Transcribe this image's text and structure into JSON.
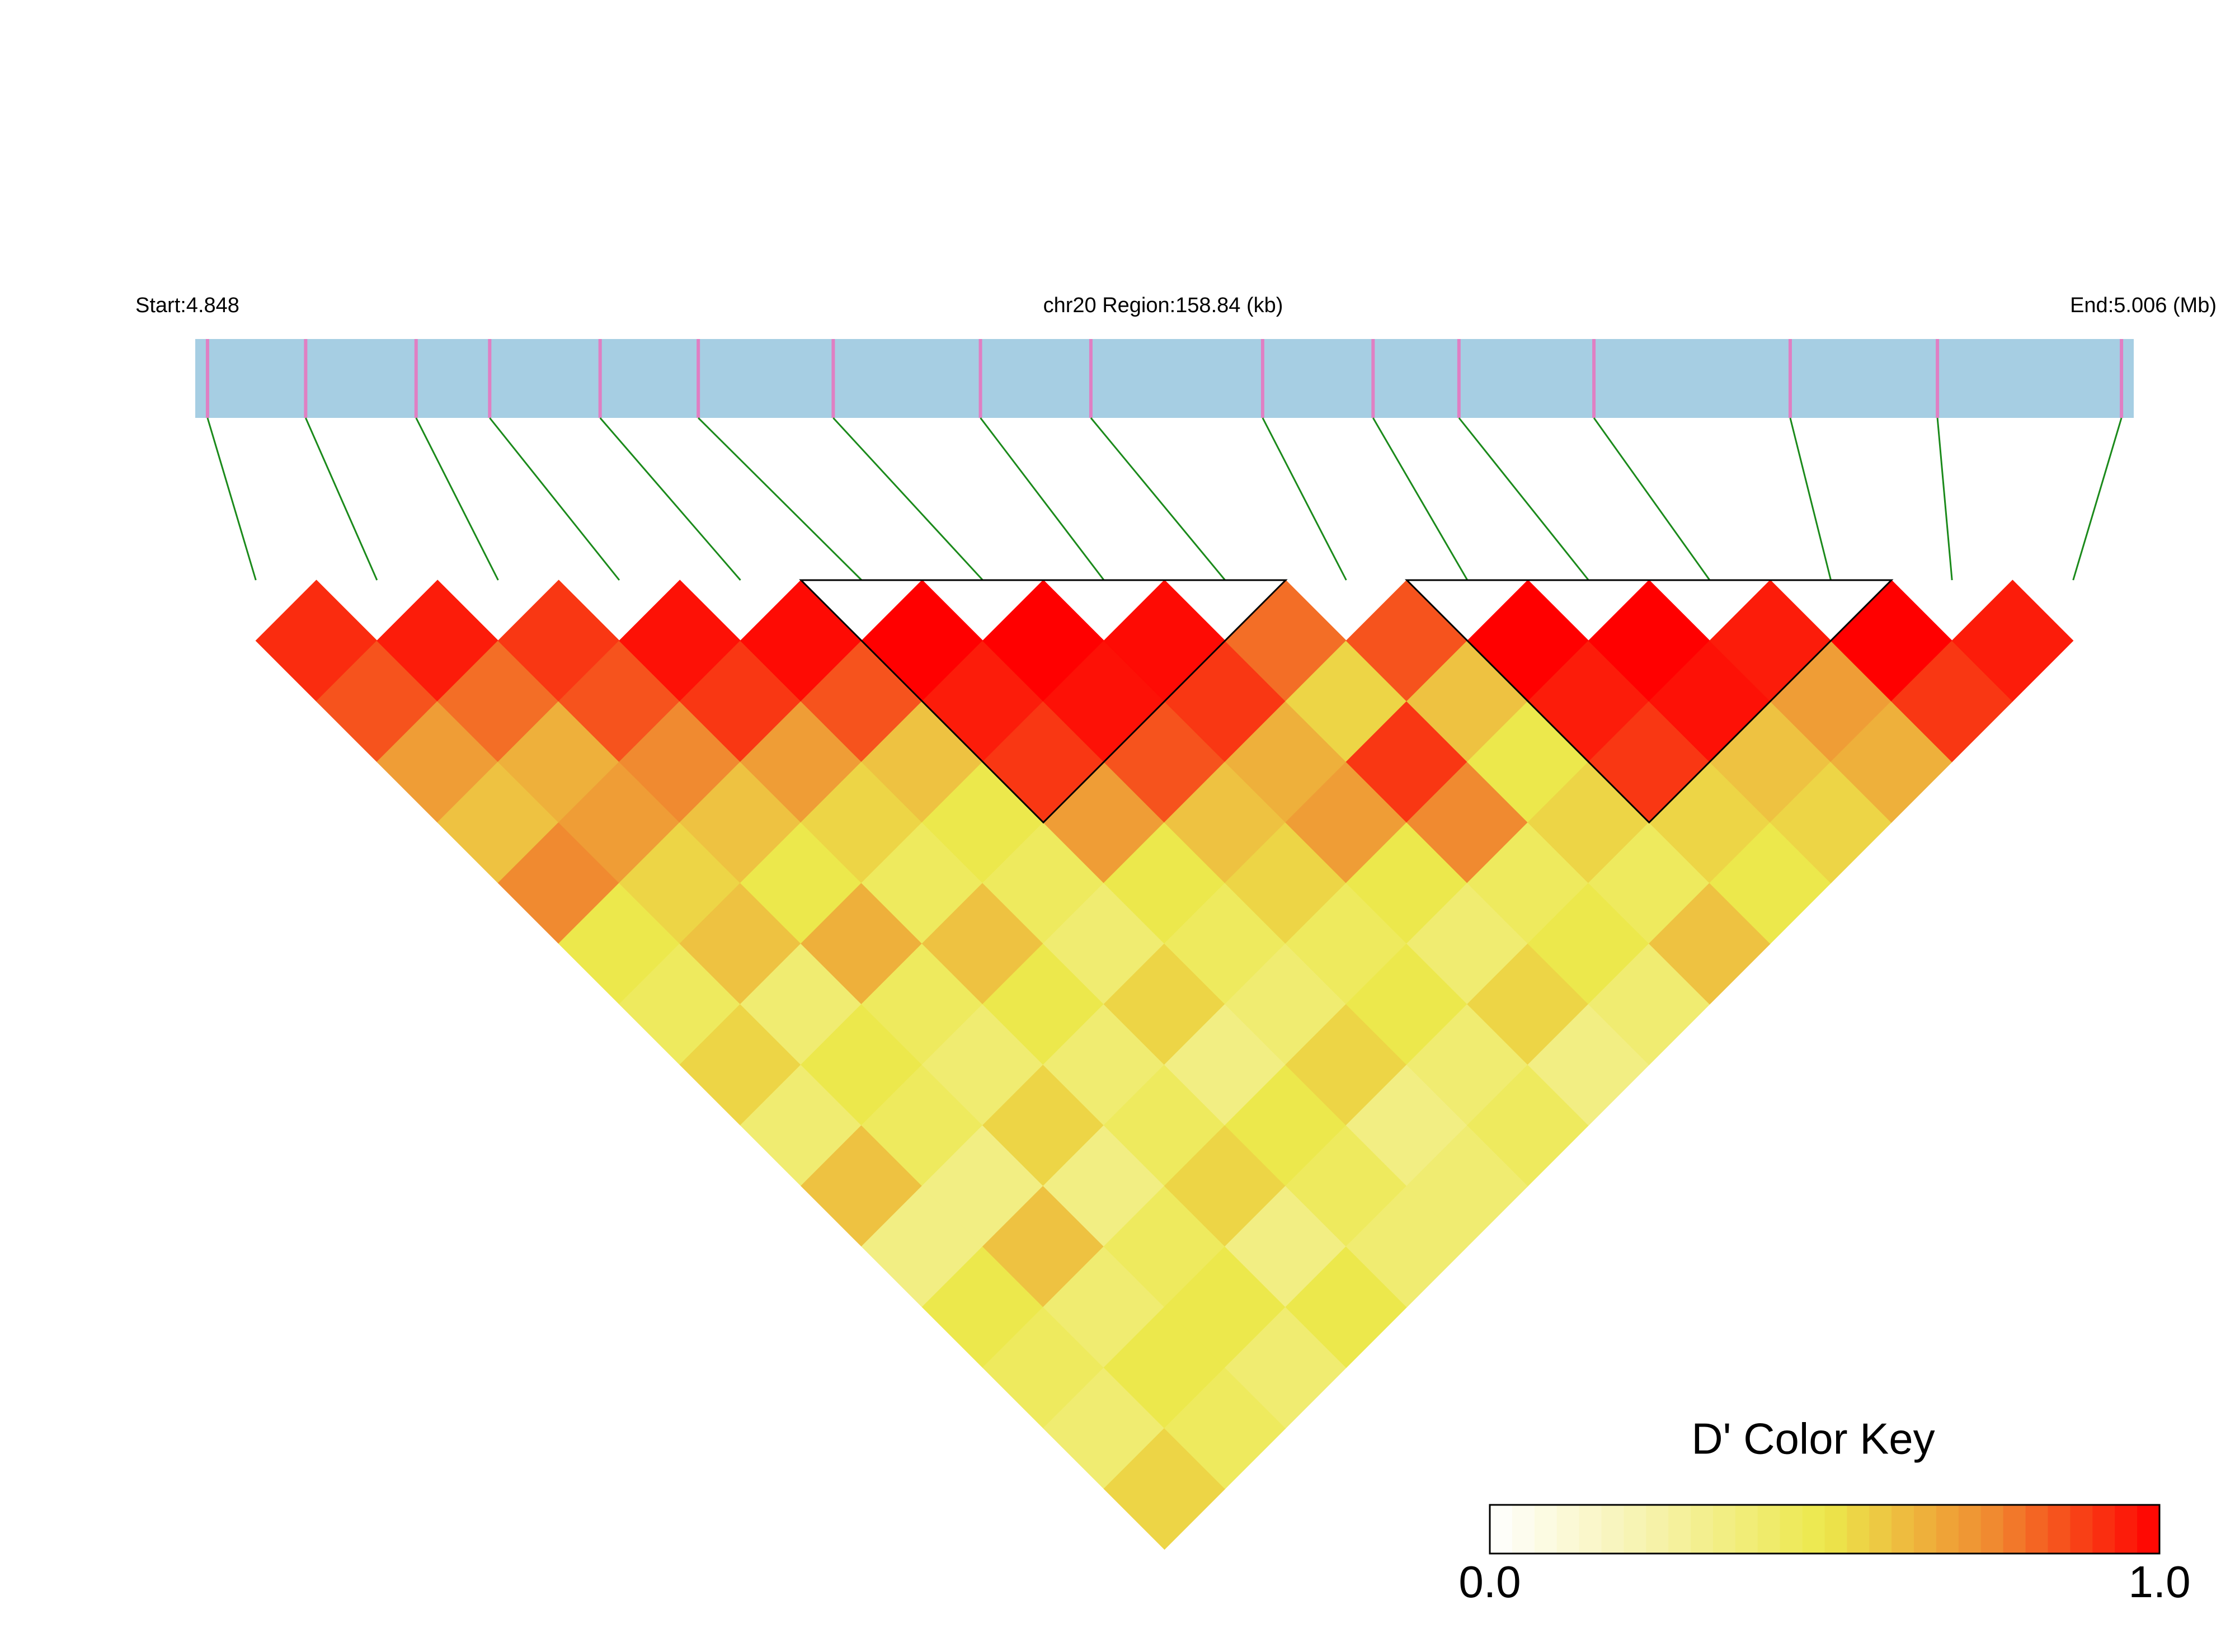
{
  "chart_data": {
    "type": "ld-heatmap",
    "start_label": "Start:4.848",
    "title": "chr20 Region:158.84 (kb)",
    "end_label": "End:5.006 (Mb)",
    "xlim": [
      4.848,
      5.006
    ],
    "snp_positions": [
      4.849,
      4.857,
      4.866,
      4.872,
      4.881,
      4.889,
      4.9,
      4.912,
      4.921,
      4.935,
      4.944,
      4.951,
      4.962,
      4.978,
      4.99,
      5.005
    ],
    "dprime": [
      [
        0.92,
        0.85,
        0.7,
        0.6,
        0.75,
        0.5,
        0.45,
        0.55,
        0.4,
        0.6,
        0.35,
        0.5,
        0.45,
        0.4,
        0.55
      ],
      [
        0.95,
        0.8,
        0.65,
        0.7,
        0.55,
        0.6,
        0.4,
        0.5,
        0.45,
        0.35,
        0.6,
        0.4,
        0.5,
        0.45
      ],
      [
        0.9,
        0.85,
        0.75,
        0.6,
        0.5,
        0.65,
        0.45,
        0.4,
        0.55,
        0.35,
        0.45,
        0.5,
        0.4
      ],
      [
        0.97,
        0.9,
        0.7,
        0.55,
        0.45,
        0.6,
        0.5,
        0.4,
        0.45,
        0.55,
        0.35,
        0.5
      ],
      [
        0.98,
        0.85,
        0.6,
        0.5,
        0.45,
        0.4,
        0.55,
        0.35,
        0.5,
        0.45,
        0.4
      ],
      [
        1,
        0.95,
        0.9,
        0.7,
        0.5,
        0.45,
        0.4,
        0.55,
        0.35,
        0.4
      ],
      [
        1,
        0.97,
        0.85,
        0.6,
        0.55,
        0.45,
        0.5,
        0.4,
        0.45
      ],
      [
        0.98,
        0.9,
        0.65,
        0.7,
        0.5,
        0.4,
        0.55,
        0.35
      ],
      [
        0.8,
        0.55,
        0.9,
        0.75,
        0.45,
        0.5,
        0.4
      ],
      [
        0.85,
        0.6,
        0.5,
        0.55,
        0.45,
        0.6
      ],
      [
        1,
        0.95,
        0.9,
        0.55,
        0.5
      ],
      [
        1,
        0.97,
        0.6,
        0.55
      ],
      [
        0.95,
        0.7,
        0.65
      ],
      [
        1,
        0.9
      ],
      [
        0.95
      ]
    ],
    "blocks": [
      [
        5,
        8
      ],
      [
        10,
        13
      ]
    ],
    "track_color": "#a6cee3",
    "snp_color": "#e07fc3",
    "link_color": "#1b8a1b",
    "color_key": {
      "title": "D' Color Key",
      "lim": [
        0,
        1
      ],
      "ticks": [
        {
          "value": 0,
          "label": "0.0"
        },
        {
          "value": 1,
          "label": "1.0"
        }
      ],
      "colors": [
        "#ffffff",
        "#f6f2a8",
        "#ece84c",
        "#f08a30",
        "#ff0000"
      ]
    }
  }
}
